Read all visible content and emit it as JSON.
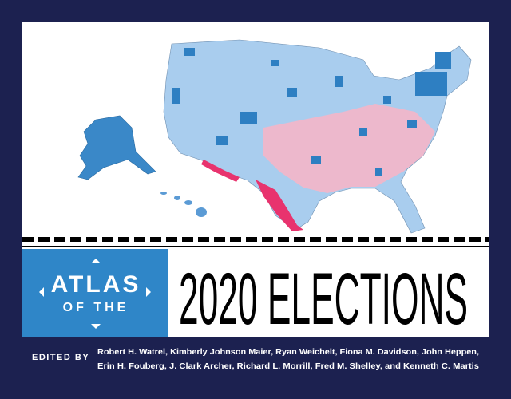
{
  "cover": {
    "title": {
      "line1": "ATLAS",
      "line2": "OF THE",
      "main": "2020 ELECTIONS"
    },
    "credits": {
      "label": "EDITED BY",
      "editors": [
        "Robert H. Watrel, Kimberly Johnson Maier, Ryan Weichelt, Fiona M. Davidson, John Heppen,",
        "Erin H. Fouberg, J. Clark Archer, Richard L. Morrill, Fred M. Shelley, and Kenneth C. Martis"
      ]
    }
  }
}
